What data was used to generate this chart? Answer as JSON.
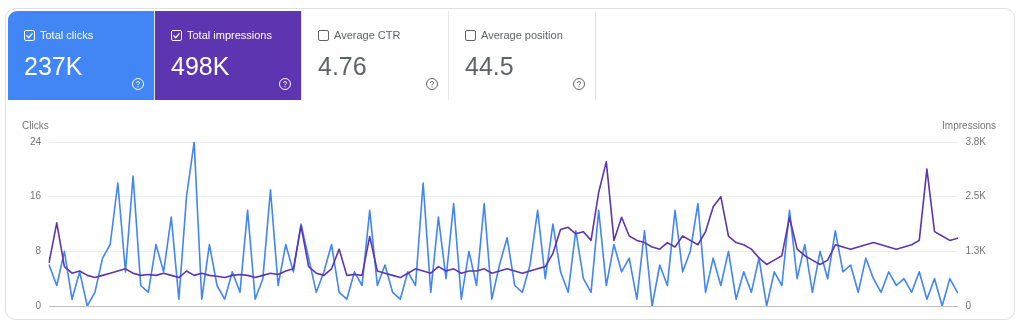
{
  "chart_data": [
    {
      "type": "other",
      "categories": [
        "Total clicks",
        "Total impressions",
        "Average CTR",
        "Average position"
      ],
      "value_labels": [
        "237K",
        "498K",
        "4.76",
        "44.5"
      ],
      "colors": [
        "#4285f4",
        "#5e35b1",
        null,
        null
      ]
    },
    {
      "type": "line",
      "ylabel": "Clicks",
      "y2label": "Impressions",
      "categories": [
        null,
        null,
        null,
        null,
        null,
        null,
        null,
        null,
        null,
        null,
        null,
        null,
        null,
        null,
        null,
        null,
        null,
        null,
        null,
        null,
        null,
        null,
        null,
        null,
        null,
        null,
        null,
        null,
        null,
        null,
        null,
        null,
        null,
        null,
        null,
        null,
        null,
        null,
        null,
        null,
        null,
        null,
        null,
        null,
        null,
        null,
        null,
        null,
        null,
        null,
        null,
        null,
        null,
        null,
        null,
        null,
        null,
        null,
        null,
        null,
        null,
        null,
        null,
        null,
        null,
        null,
        null,
        null,
        null,
        null,
        null,
        null,
        null,
        null,
        null,
        null,
        null,
        null,
        null,
        null,
        null,
        null,
        null,
        null,
        null,
        null,
        null,
        null,
        null,
        null,
        null,
        null,
        null,
        null,
        null,
        null,
        null,
        null,
        null,
        null,
        null,
        null,
        null,
        null,
        null,
        null,
        null,
        null,
        null,
        null,
        null,
        null,
        null,
        null,
        null,
        null,
        null,
        null,
        null,
        null
      ],
      "ylim": [
        0,
        24
      ],
      "yticks": [
        0,
        8,
        16,
        24
      ],
      "y2lim": [
        0,
        3750
      ],
      "y2ticks": [
        0,
        {
          "value": 1250,
          "label": "1.3K"
        },
        {
          "value": 2500,
          "label": "2.5K"
        },
        {
          "value": 3750,
          "label": "3.8K"
        }
      ],
      "grid": "y",
      "legend": false,
      "tick_labels": "y",
      "marker": "none",
      "line_style": "solid",
      "series": [
        {
          "color": "#5e35b1",
          "axis": "y2",
          "values": [
            1000,
            1900,
            900,
            750,
            800,
            700,
            650,
            700,
            750,
            800,
            850,
            750,
            700,
            720,
            700,
            750,
            700,
            650,
            800,
            700,
            750,
            700,
            680,
            650,
            700,
            720,
            700,
            650,
            700,
            750,
            720,
            800,
            850,
            1830,
            900,
            750,
            700,
            850,
            1300,
            700,
            720,
            700,
            1590,
            800,
            750,
            700,
            650,
            750,
            850,
            800,
            750,
            900,
            800,
            850,
            750,
            800,
            800,
            850,
            750,
            800,
            850,
            800,
            750,
            800,
            850,
            900,
            1200,
            1750,
            1800,
            1650,
            1700,
            1500,
            2600,
            3300,
            1500,
            2030,
            1600,
            1500,
            1450,
            1350,
            1300,
            1450,
            1350,
            1600,
            1500,
            1400,
            1700,
            2270,
            2500,
            1600,
            1450,
            1400,
            1300,
            1100,
            950,
            1050,
            1150,
            2030,
            1300,
            1150,
            1050,
            950,
            1050,
            1400,
            1350,
            1300,
            1350,
            1400,
            1450,
            1400,
            1350,
            1300,
            1350,
            1400,
            1500,
            3130,
            1700,
            1600,
            1500,
            1550
          ]
        },
        {
          "color": "#4285f4",
          "values": [
            6,
            3,
            8,
            1,
            5,
            0,
            2,
            7,
            9,
            18,
            5,
            19,
            3,
            2,
            9,
            5,
            13,
            1,
            16,
            24,
            1,
            9,
            3,
            1,
            5,
            2,
            14,
            1,
            4,
            17,
            3,
            9,
            5,
            12,
            7,
            2,
            5,
            9,
            2,
            1,
            5,
            3,
            14,
            3,
            6,
            2,
            1,
            5,
            3,
            18,
            2,
            13,
            4,
            15,
            1,
            8,
            3,
            15,
            1,
            6,
            10,
            3,
            2,
            6,
            14,
            4,
            12,
            5,
            2,
            11,
            4,
            2,
            14,
            3,
            9,
            5,
            7,
            1,
            11,
            0,
            6,
            3,
            14,
            5,
            8,
            15,
            2,
            7,
            3,
            8,
            1,
            5,
            2,
            7,
            0,
            5,
            3,
            14,
            4,
            9,
            2,
            8,
            4,
            11,
            5,
            6,
            2,
            7,
            4,
            2,
            5,
            3,
            4,
            2,
            5,
            1,
            4,
            0,
            4,
            2
          ]
        }
      ]
    }
  ]
}
